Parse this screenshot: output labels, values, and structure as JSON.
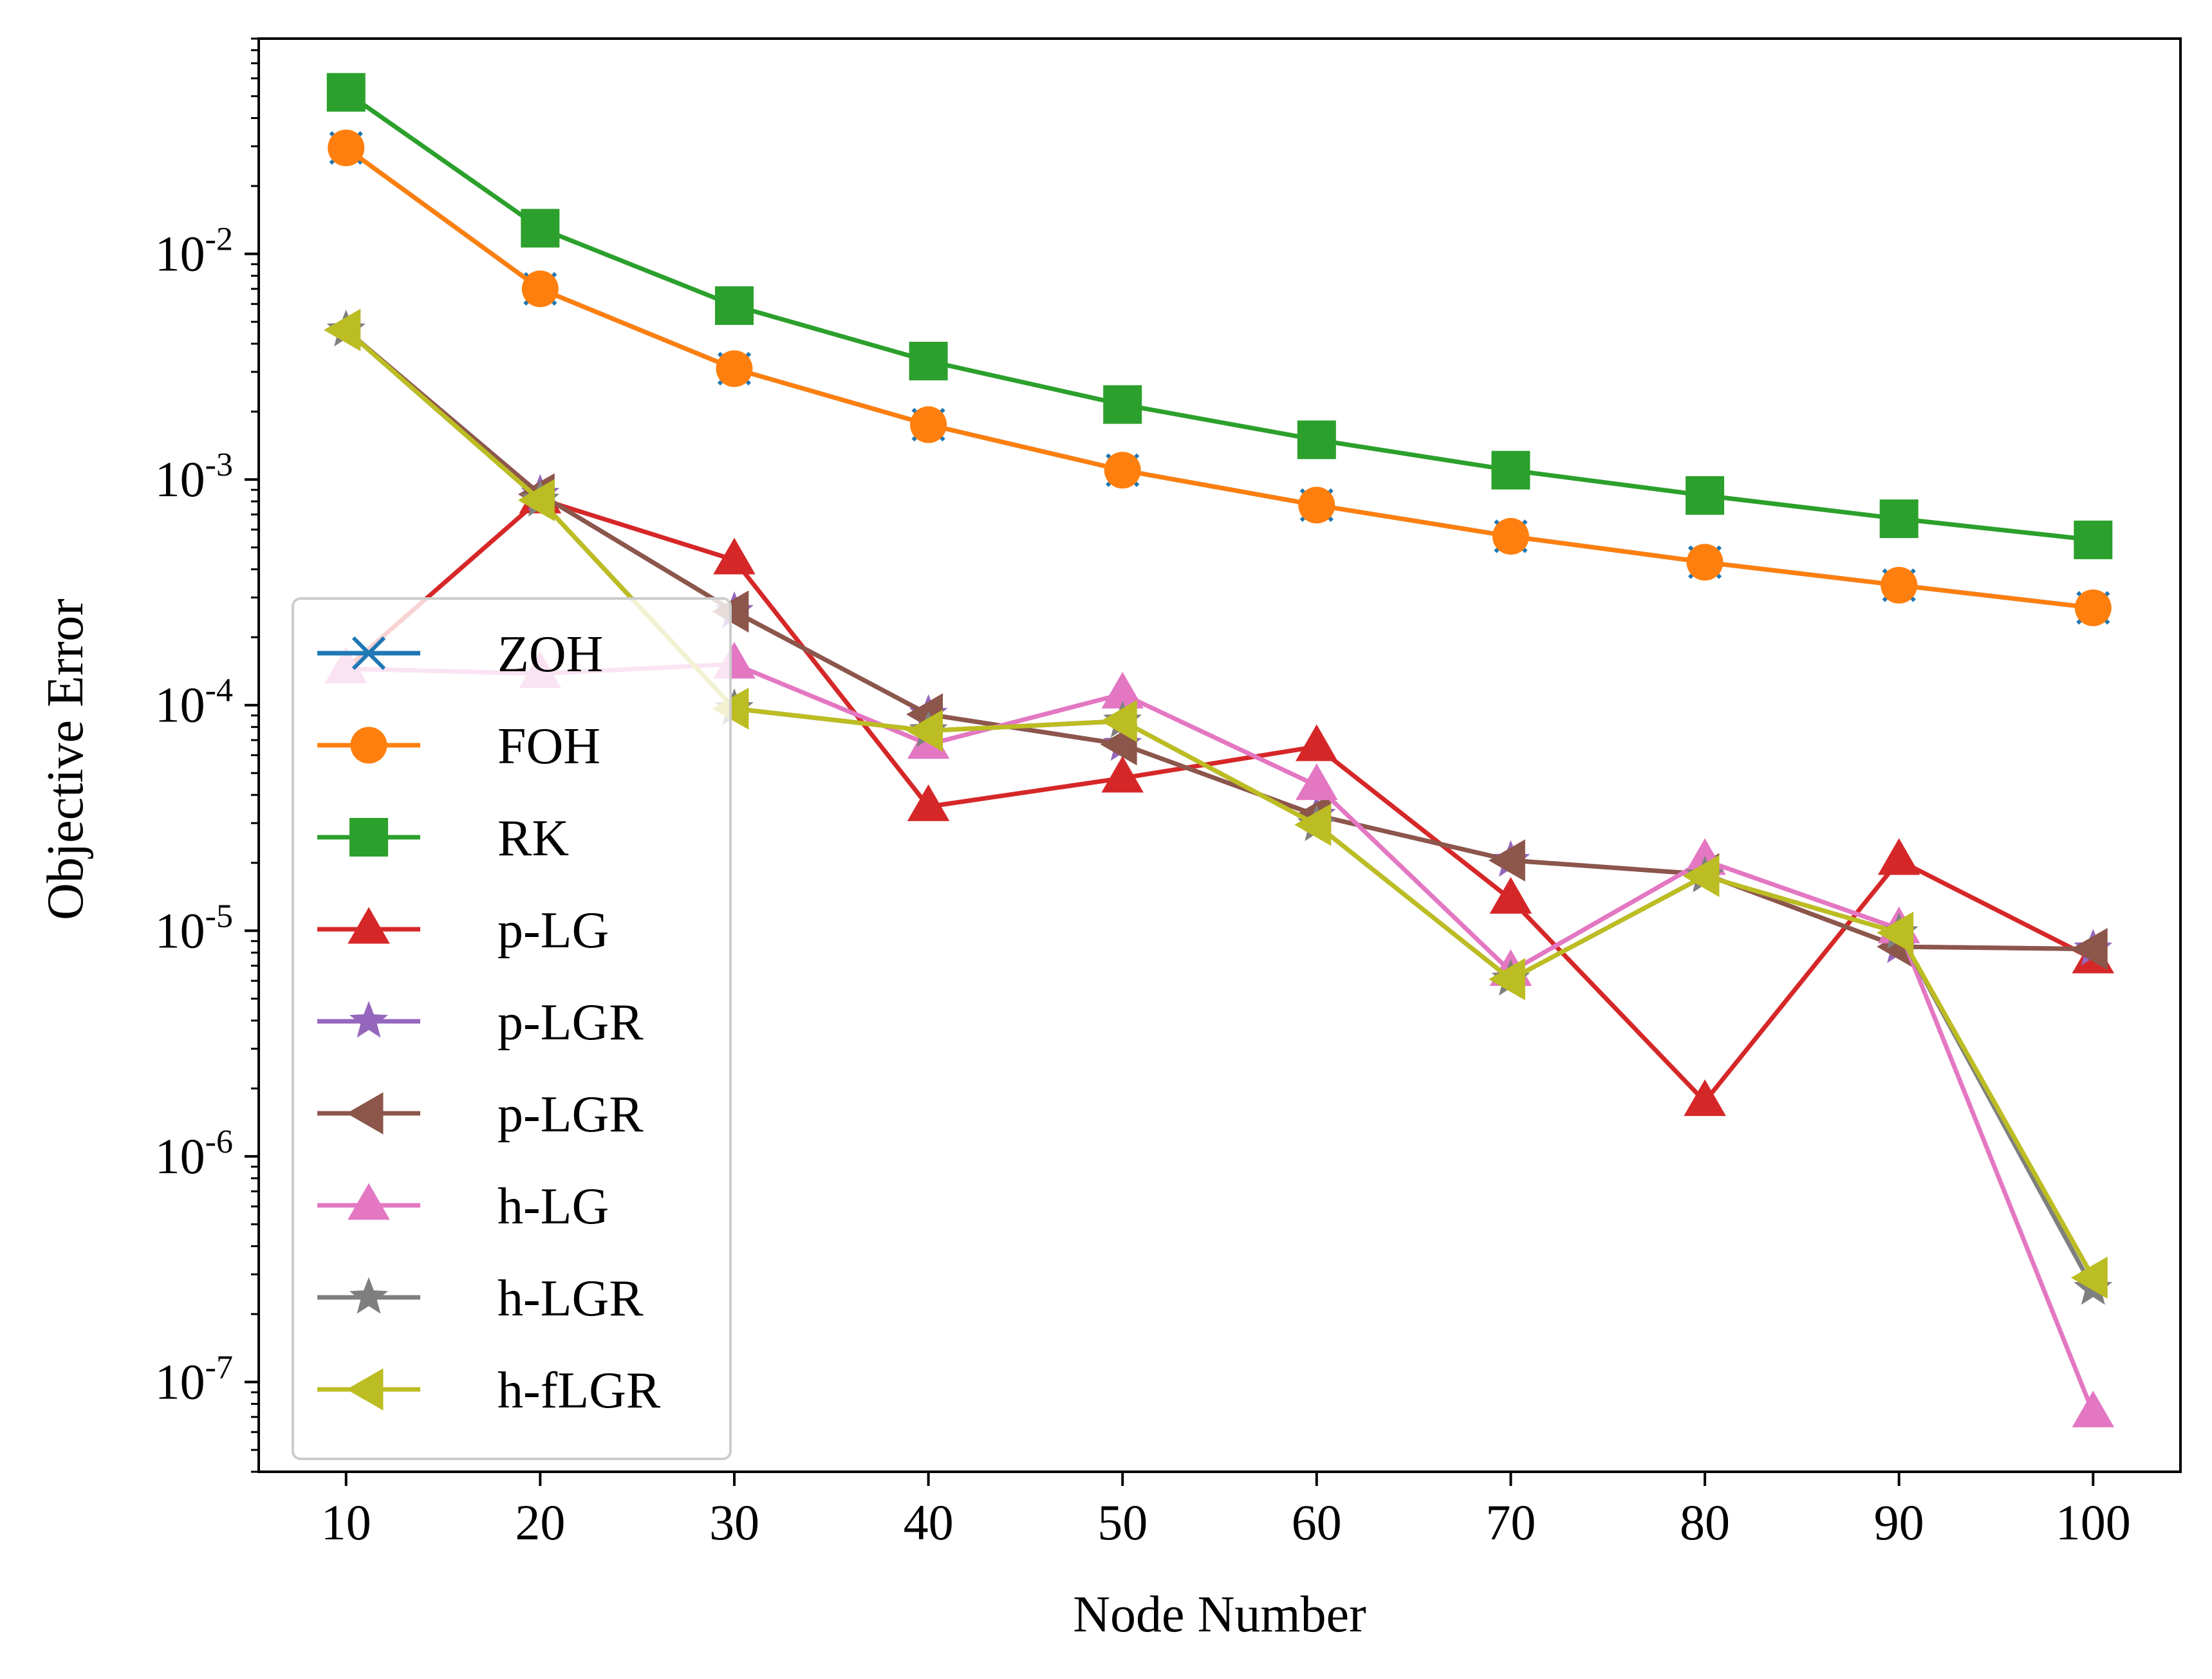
{
  "chart_data": {
    "type": "line",
    "xlabel": "Node Number",
    "ylabel": "Objective Error",
    "yscale": "log",
    "xlim": [
      5.5,
      104.5
    ],
    "ylim": [
      4e-08,
      0.09
    ],
    "grid": false,
    "legend_placement": "lower-left",
    "x": [
      10,
      20,
      30,
      40,
      50,
      60,
      70,
      80,
      90,
      100
    ],
    "x_ticks": [
      "10",
      "20",
      "30",
      "40",
      "50",
      "60",
      "70",
      "80",
      "90",
      "100"
    ],
    "y_ticks": [
      {
        "base": "10",
        "exp": "-7",
        "value": 1e-07
      },
      {
        "base": "10",
        "exp": "-6",
        "value": 1e-06
      },
      {
        "base": "10",
        "exp": "-5",
        "value": 1e-05
      },
      {
        "base": "10",
        "exp": "-4",
        "value": 0.0001
      },
      {
        "base": "10",
        "exp": "-3",
        "value": 0.001
      },
      {
        "base": "10",
        "exp": "-2",
        "value": 0.01
      }
    ],
    "series": [
      {
        "name": "ZOH",
        "color": "#1f77b4",
        "marker": "x",
        "values": [
          0.0295,
          0.007,
          0.0031,
          0.00175,
          0.0011,
          0.00077,
          0.00056,
          0.00043,
          0.00034,
          0.00027
        ]
      },
      {
        "name": "FOH",
        "color": "#ff7f0e",
        "marker": "circle",
        "values": [
          0.0295,
          0.007,
          0.0031,
          0.00175,
          0.0011,
          0.00077,
          0.00056,
          0.00043,
          0.00034,
          0.00027
        ]
      },
      {
        "name": "RK",
        "color": "#2ca02c",
        "marker": "square",
        "values": [
          0.052,
          0.013,
          0.0059,
          0.00335,
          0.00215,
          0.0015,
          0.0011,
          0.00085,
          0.00067,
          0.00054
        ]
      },
      {
        "name": "p-LG",
        "color": "#d62728",
        "marker": "triangle-up",
        "values": [
          0.000145,
          0.00082,
          0.00044,
          3.55e-05,
          4.75e-05,
          6.55e-05,
          1.38e-05,
          1.75e-06,
          2.05e-05,
          7.5e-06
        ]
      },
      {
        "name": "p-LGR",
        "color": "#9467bd",
        "marker": "star",
        "values": [
          0.0046,
          0.00086,
          0.00026,
          9.1e-05,
          6.7e-05,
          3.25e-05,
          2.05e-05,
          1.78e-05,
          8.5e-06,
          8.3e-06
        ]
      },
      {
        "name": "p-LGR",
        "color": "#8c564b",
        "marker": "triangle-left",
        "values": [
          0.0046,
          0.00086,
          0.00026,
          9.1e-05,
          6.7e-05,
          3.25e-05,
          2.05e-05,
          1.78e-05,
          8.5e-06,
          8.3e-06
        ]
      },
      {
        "name": "h-LG",
        "color": "#e377c2",
        "marker": "triangle-up",
        "values": [
          0.000145,
          0.000138,
          0.000152,
          6.7e-05,
          0.000112,
          4.4e-05,
          6.6e-06,
          2.05e-05,
          1.02e-05,
          7.3e-08
        ]
      },
      {
        "name": "h-LGR",
        "color": "#7f7f7f",
        "marker": "star",
        "values": [
          0.0046,
          0.00081,
          9.65e-05,
          7.7e-05,
          8.5e-05,
          2.95e-05,
          6.1e-06,
          1.75e-05,
          9.8e-06,
          2.6e-07
        ]
      },
      {
        "name": "h-fLGR",
        "color": "#bcbd22",
        "marker": "triangle-left",
        "values": [
          0.0046,
          0.00081,
          9.65e-05,
          7.7e-05,
          8.5e-05,
          2.95e-05,
          6.1e-06,
          1.75e-05,
          9.8e-06,
          2.9e-07
        ]
      }
    ]
  }
}
